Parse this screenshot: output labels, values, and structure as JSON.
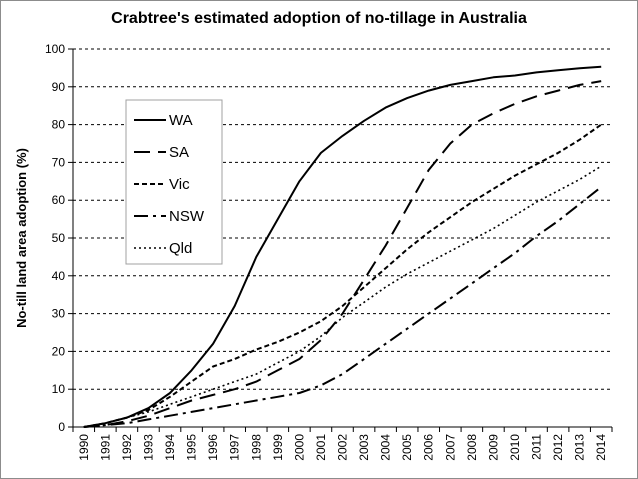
{
  "chart_data": {
    "type": "line",
    "title": "Crabtree's estimated adoption of no-tillage in Australia",
    "xlabel": "",
    "ylabel": "No-till land area adoption (%)",
    "ylim": [
      0,
      100
    ],
    "yticks": [
      0,
      10,
      20,
      30,
      40,
      50,
      60,
      70,
      80,
      90,
      100
    ],
    "grid": "horizontal dashed",
    "legend": "top-left",
    "x": [
      "1990",
      "1991",
      "1992",
      "1993",
      "1994",
      "1995",
      "1996",
      "1997",
      "1998",
      "1999",
      "2000",
      "2001",
      "2002",
      "2003",
      "2004",
      "2005",
      "2006",
      "2007",
      "2008",
      "2009",
      "2010",
      "2011",
      "2012",
      "2013",
      "2014"
    ],
    "series": [
      {
        "name": "WA",
        "dash": "",
        "width": 2,
        "values": [
          0,
          1,
          2.5,
          5,
          9,
          15,
          22,
          32,
          45,
          55,
          65,
          72.5,
          77,
          81,
          84.5,
          87,
          89,
          90.5,
          91.5,
          92.5,
          93,
          93.8,
          94.4,
          94.9,
          95.3
        ]
      },
      {
        "name": "SA",
        "dash": "16,8",
        "width": 2,
        "values": [
          0,
          0.5,
          1.5,
          3,
          5,
          7,
          8.5,
          10,
          12,
          15,
          18,
          23,
          30,
          39,
          48,
          58,
          68,
          75,
          80,
          83,
          85.5,
          87.5,
          89,
          90.5,
          91.5
        ]
      },
      {
        "name": "Vic",
        "dash": "5,3",
        "width": 2,
        "values": [
          0,
          1,
          2.5,
          4.5,
          8,
          12,
          16,
          18,
          20.5,
          22.5,
          25,
          28,
          32,
          37,
          42,
          47,
          51.5,
          55.5,
          59.5,
          63,
          66.5,
          69.5,
          72.5,
          76,
          80
        ]
      },
      {
        "name": "NSW",
        "dash": "14,5,3,5",
        "width": 2,
        "values": [
          0,
          0.5,
          1,
          2,
          3,
          4,
          5,
          6,
          7,
          8,
          9,
          11,
          14,
          18,
          22,
          26,
          30,
          34,
          38,
          42,
          46,
          50.5,
          54.5,
          59,
          63.5
        ]
      },
      {
        "name": "Qld",
        "dash": "2,3",
        "width": 1.6,
        "values": [
          0,
          1,
          2.5,
          4,
          6,
          8,
          10,
          12,
          14,
          17,
          20,
          24,
          29,
          33,
          37,
          40.5,
          43.5,
          46.5,
          49.5,
          52.5,
          56,
          59.5,
          62.5,
          65.5,
          69
        ]
      }
    ]
  }
}
